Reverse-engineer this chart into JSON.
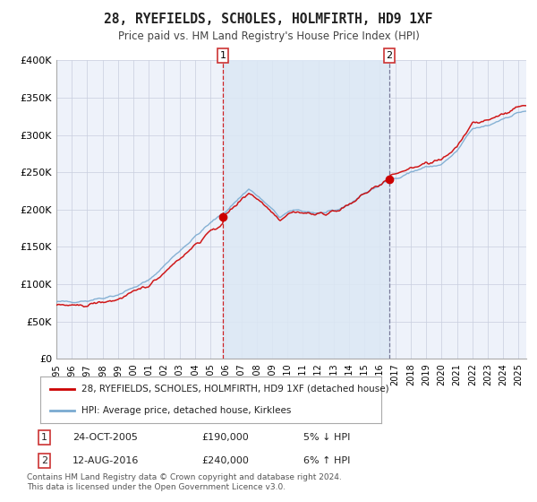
{
  "title": "28, RYEFIELDS, SCHOLES, HOLMFIRTH, HD9 1XF",
  "subtitle": "Price paid vs. HM Land Registry's House Price Index (HPI)",
  "ylim": [
    0,
    400000
  ],
  "yticks": [
    0,
    50000,
    100000,
    150000,
    200000,
    250000,
    300000,
    350000,
    400000
  ],
  "ytick_labels": [
    "£0",
    "£50K",
    "£100K",
    "£150K",
    "£200K",
    "£250K",
    "£300K",
    "£350K",
    "£400K"
  ],
  "xstart_year": 1995,
  "xend_year": 2025,
  "background_color": "#ffffff",
  "plot_bg_color": "#eef2fa",
  "grid_color": "#c8cede",
  "sale1_date": 2005.81,
  "sale1_price": 190000,
  "sale2_date": 2016.62,
  "sale2_price": 240000,
  "red_line_color": "#cc0000",
  "blue_line_color": "#7aaad0",
  "shading_color": "#dce8f5",
  "vline1_color": "#cc0000",
  "vline2_color": "#666688",
  "legend1_label": "28, RYEFIELDS, SCHOLES, HOLMFIRTH, HD9 1XF (detached house)",
  "legend2_label": "HPI: Average price, detached house, Kirklees",
  "footer": "Contains HM Land Registry data © Crown copyright and database right 2024.\nThis data is licensed under the Open Government Licence v3.0.",
  "table_row1": [
    "1",
    "24-OCT-2005",
    "£190,000",
    "5% ↓ HPI"
  ],
  "table_row2": [
    "2",
    "12-AUG-2016",
    "£240,000",
    "6% ↑ HPI"
  ],
  "hpi_base_t": [
    1995.0,
    1997.0,
    1999.0,
    2001.0,
    2003.0,
    2005.0,
    2006.0,
    2007.5,
    2008.5,
    2009.5,
    2010.5,
    2012.0,
    2013.0,
    2014.0,
    2015.0,
    2016.5,
    2017.0,
    2018.0,
    2019.0,
    2020.0,
    2021.0,
    2022.0,
    2023.0,
    2024.0,
    2025.3
  ],
  "hpi_base_v": [
    76000,
    78000,
    86000,
    105000,
    145000,
    182000,
    198000,
    228000,
    210000,
    190000,
    200000,
    195000,
    197000,
    207000,
    222000,
    238000,
    242000,
    250000,
    257000,
    260000,
    278000,
    308000,
    312000,
    322000,
    332000
  ]
}
